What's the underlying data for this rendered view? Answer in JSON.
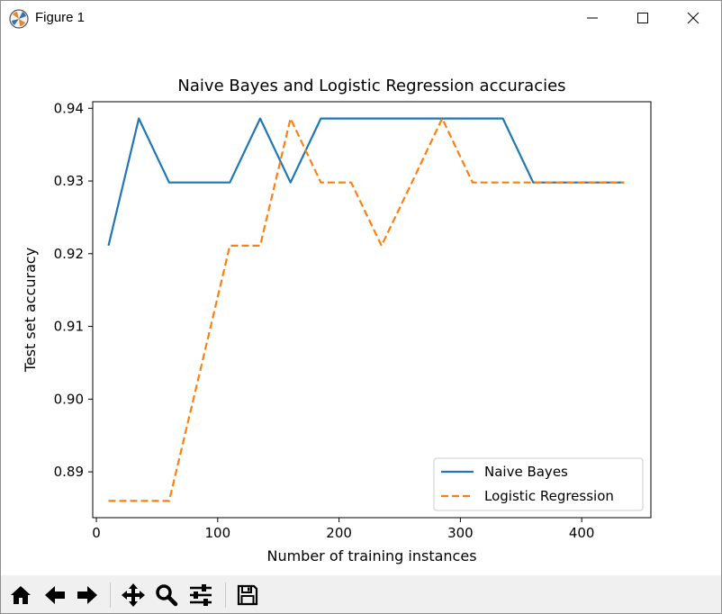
{
  "window": {
    "title": "Figure 1",
    "controls": [
      "minimize-icon",
      "maximize-icon",
      "close-icon"
    ]
  },
  "toolbar": {
    "buttons": [
      "home-icon",
      "back-arrow-icon",
      "forward-arrow-icon",
      "pan-icon",
      "zoom-icon",
      "configure-subplots-icon",
      "save-icon"
    ]
  },
  "chart_data": {
    "type": "line",
    "title": "Naive Bayes and Logistic Regression accuracies",
    "xlabel": "Number of training instances",
    "ylabel": "Test set accuracy",
    "xlim": [
      -3,
      457
    ],
    "ylim": [
      0.8837,
      0.9409
    ],
    "xticks": [
      0,
      100,
      200,
      300,
      400
    ],
    "yticks": [
      0.89,
      0.9,
      0.91,
      0.92,
      0.93,
      0.94
    ],
    "ytick_labels": [
      "0.89",
      "0.90",
      "0.91",
      "0.92",
      "0.93",
      "0.94"
    ],
    "x": [
      10,
      35,
      60,
      85,
      110,
      135,
      160,
      185,
      210,
      235,
      260,
      285,
      310,
      335,
      360,
      385,
      410,
      435
    ],
    "grid": false,
    "legend": "lower-right",
    "series": [
      {
        "name": "Naive Bayes",
        "color": "#1f77b4",
        "style": "solid",
        "values": [
          0.9211,
          0.9386,
          0.9298,
          0.9298,
          0.9298,
          0.9386,
          0.9298,
          0.9386,
          0.9386,
          0.9386,
          0.9386,
          0.9386,
          0.9386,
          0.9386,
          0.9298,
          0.9298,
          0.9298,
          0.9298
        ]
      },
      {
        "name": "Logistic Regression",
        "color": "#ff7f0e",
        "style": "dashed",
        "values": [
          0.886,
          0.886,
          0.886,
          0.9035,
          0.9211,
          0.9211,
          0.9386,
          0.9298,
          0.9298,
          0.9211,
          0.9298,
          0.9386,
          0.9298,
          0.9298,
          0.9298,
          0.9298,
          0.9298,
          0.9298
        ]
      }
    ]
  }
}
